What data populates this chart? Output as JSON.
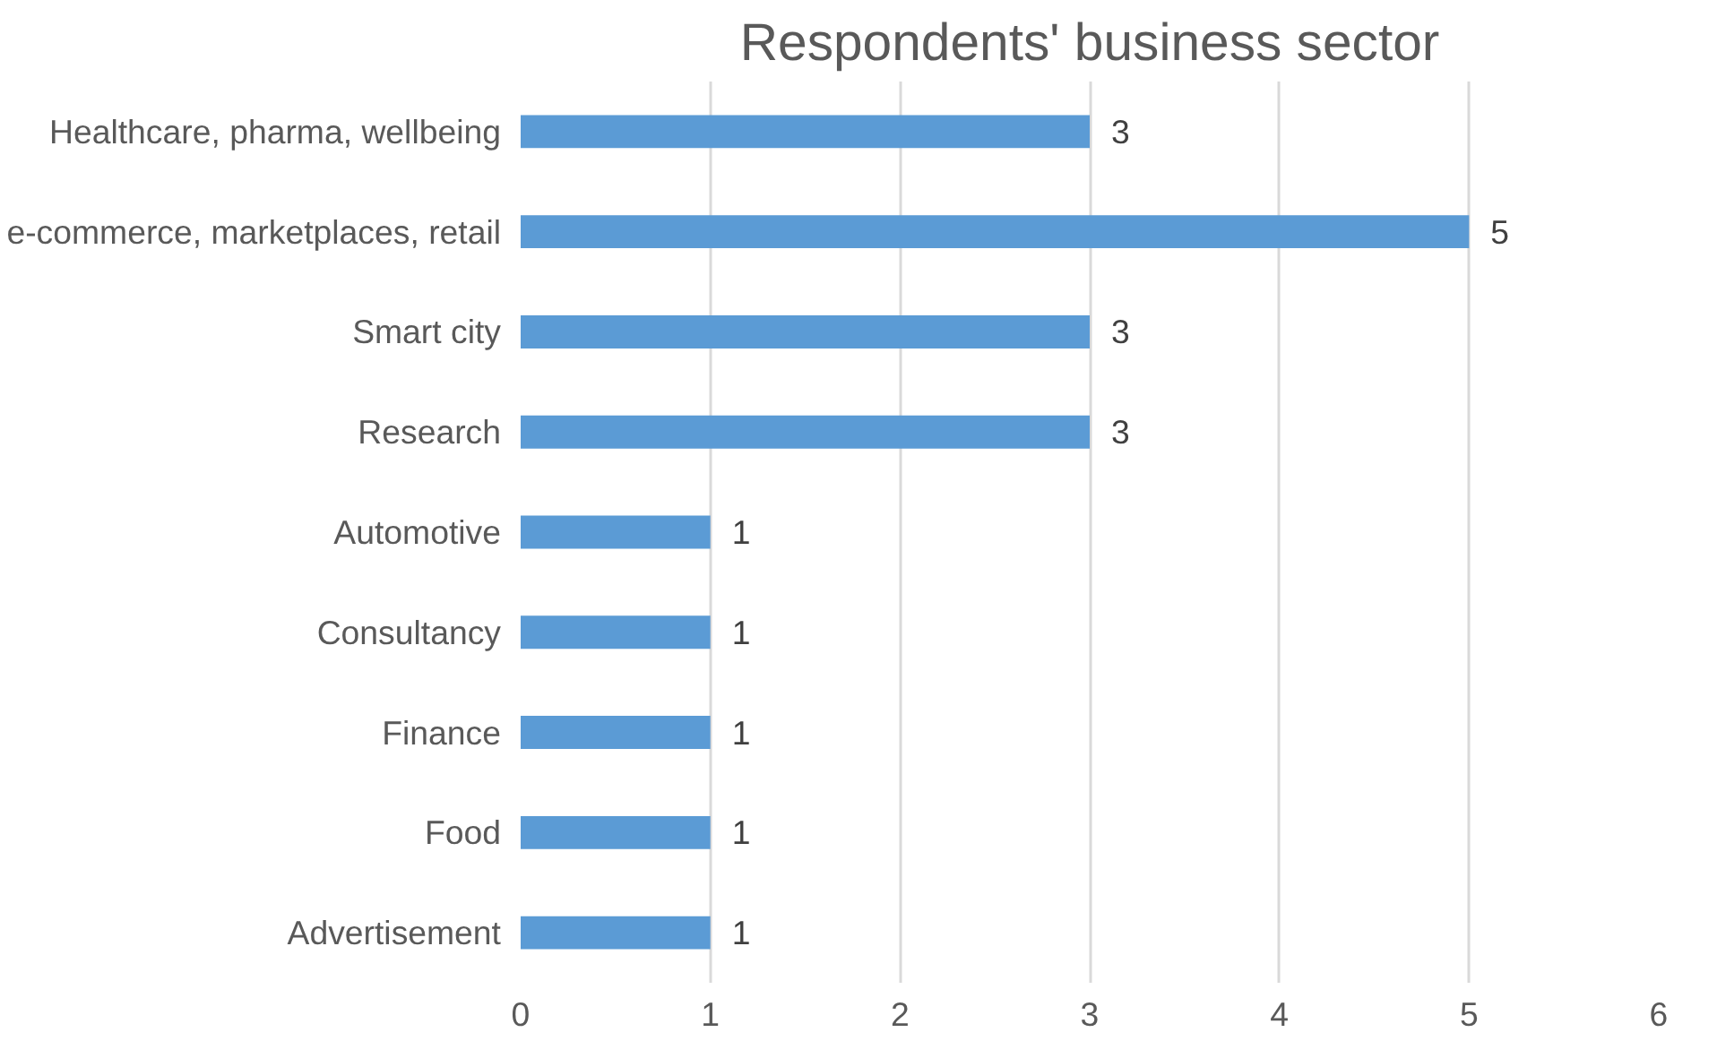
{
  "chart_data": {
    "type": "bar",
    "orientation": "horizontal",
    "title": "Respondents' business sector",
    "categories": [
      "Healthcare, pharma, wellbeing",
      "e-commerce, marketplaces, retail",
      "Smart city",
      "Research",
      "Automotive",
      "Consultancy",
      "Finance",
      "Food",
      "Advertisement"
    ],
    "values": [
      3,
      5,
      3,
      3,
      1,
      1,
      1,
      1,
      1
    ],
    "color": "#5b9bd5",
    "xlim": [
      0,
      6
    ],
    "xticks": [
      0,
      1,
      2,
      3,
      4,
      5,
      6
    ],
    "grid": "x",
    "data_labels": true
  }
}
